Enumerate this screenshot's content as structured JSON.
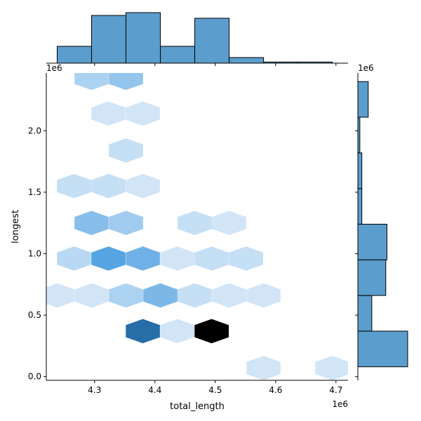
{
  "chart_data": {
    "type": "hexbin-jointplot",
    "xlabel": "total_length",
    "ylabel": "longest",
    "x_offset_label": "1e6",
    "y_offset_label": "1e6",
    "xlim": [
      4.22,
      4.72
    ],
    "ylim": [
      -0.03,
      2.47
    ],
    "xticks": [
      {
        "value": 4.3,
        "label": "4.3"
      },
      {
        "value": 4.4,
        "label": "4.4"
      },
      {
        "value": 4.5,
        "label": "4.5"
      },
      {
        "value": 4.6,
        "label": "4.6"
      },
      {
        "value": 4.7,
        "label": "4.7"
      }
    ],
    "yticks": [
      {
        "value": 0.0,
        "label": "0.0"
      },
      {
        "value": 0.5,
        "label": "0.5"
      },
      {
        "value": 1.0,
        "label": "1.0"
      },
      {
        "value": 1.5,
        "label": "1.5"
      },
      {
        "value": 2.0,
        "label": "2.0"
      }
    ],
    "hex_size_x": 0.0283,
    "hex_rows_y": 0.148,
    "hexbins": [
      {
        "x": 4.58,
        "y": 0.07,
        "level": 0.1
      },
      {
        "x": 4.694,
        "y": 0.07,
        "level": 0.1
      },
      {
        "x": 4.38,
        "y": 0.37,
        "level": 0.8
      },
      {
        "x": 4.437,
        "y": 0.37,
        "level": 0.1
      },
      {
        "x": 4.494,
        "y": 0.37,
        "level": 1.0
      },
      {
        "x": 4.238,
        "y": 0.66,
        "level": 0.1
      },
      {
        "x": 4.295,
        "y": 0.66,
        "level": 0.1
      },
      {
        "x": 4.352,
        "y": 0.66,
        "level": 0.25
      },
      {
        "x": 4.409,
        "y": 0.66,
        "level": 0.45
      },
      {
        "x": 4.466,
        "y": 0.66,
        "level": 0.15
      },
      {
        "x": 4.523,
        "y": 0.66,
        "level": 0.1
      },
      {
        "x": 4.58,
        "y": 0.66,
        "level": 0.1
      },
      {
        "x": 4.266,
        "y": 0.96,
        "level": 0.2
      },
      {
        "x": 4.323,
        "y": 0.96,
        "level": 0.6
      },
      {
        "x": 4.38,
        "y": 0.96,
        "level": 0.5
      },
      {
        "x": 4.437,
        "y": 0.96,
        "level": 0.1
      },
      {
        "x": 4.494,
        "y": 0.96,
        "level": 0.15
      },
      {
        "x": 4.551,
        "y": 0.96,
        "level": 0.15
      },
      {
        "x": 4.295,
        "y": 1.25,
        "level": 0.4
      },
      {
        "x": 4.352,
        "y": 1.25,
        "level": 0.3
      },
      {
        "x": 4.466,
        "y": 1.25,
        "level": 0.15
      },
      {
        "x": 4.523,
        "y": 1.25,
        "level": 0.1
      },
      {
        "x": 4.266,
        "y": 1.55,
        "level": 0.15
      },
      {
        "x": 4.323,
        "y": 1.55,
        "level": 0.15
      },
      {
        "x": 4.38,
        "y": 1.55,
        "level": 0.1
      },
      {
        "x": 4.352,
        "y": 1.84,
        "level": 0.15
      },
      {
        "x": 4.323,
        "y": 2.14,
        "level": 0.1
      },
      {
        "x": 4.38,
        "y": 2.14,
        "level": 0.1
      },
      {
        "x": 4.295,
        "y": 2.43,
        "level": 0.25
      },
      {
        "x": 4.352,
        "y": 2.43,
        "level": 0.35
      }
    ],
    "x_marginal": {
      "bin_edges": [
        4.238,
        4.295,
        4.352,
        4.409,
        4.466,
        4.523,
        4.58,
        4.637,
        4.694
      ],
      "counts": [
        6,
        17,
        18,
        6,
        16,
        2,
        0.4,
        0.4
      ]
    },
    "y_marginal": {
      "bin_edges": [
        0.08,
        0.37,
        0.66,
        0.95,
        1.24,
        1.53,
        1.82,
        2.11,
        2.4
      ],
      "counts": [
        12.5,
        3.5,
        7,
        7.3,
        1,
        1,
        0.5,
        2.6
      ]
    },
    "colors": {
      "hist_fill": "#5b9dcc",
      "hist_edge": "#000000",
      "hex_light": "#eaf2fb",
      "hex_mid": "#56a4e2",
      "hex_dark": "#1b619a",
      "hex_max": "#000000"
    }
  }
}
